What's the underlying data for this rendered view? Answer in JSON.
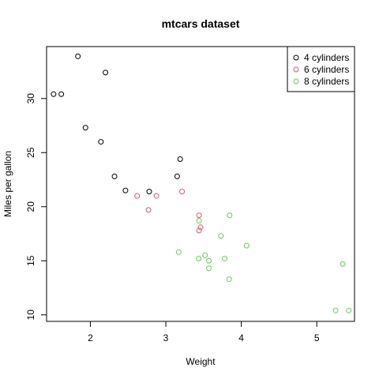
{
  "chart_data": {
    "type": "scatter",
    "title": "mtcars dataset",
    "xlabel": "Weight",
    "ylabel": "Miles per gallon",
    "xlim": [
      1.42,
      5.5
    ],
    "ylim": [
      9.4,
      34.8
    ],
    "xticks": [
      2,
      3,
      4,
      5
    ],
    "yticks": [
      10,
      15,
      20,
      25,
      30
    ],
    "grid": false,
    "legend_position": "top-right",
    "marker": "open-circle",
    "series": [
      {
        "name": "4 cylinders",
        "color": "#000000",
        "points": [
          {
            "x": 1.835,
            "y": 33.9
          },
          {
            "x": 2.2,
            "y": 32.4
          },
          {
            "x": 1.513,
            "y": 30.4
          },
          {
            "x": 1.615,
            "y": 30.4
          },
          {
            "x": 1.935,
            "y": 27.3
          },
          {
            "x": 2.14,
            "y": 26.0
          },
          {
            "x": 3.19,
            "y": 24.4
          },
          {
            "x": 3.15,
            "y": 22.8
          },
          {
            "x": 2.32,
            "y": 22.8
          },
          {
            "x": 2.465,
            "y": 21.5
          },
          {
            "x": 2.78,
            "y": 21.4
          }
        ]
      },
      {
        "name": "6 cylinders",
        "color": "#DF536B",
        "points": [
          {
            "x": 3.215,
            "y": 21.4
          },
          {
            "x": 2.62,
            "y": 21.0
          },
          {
            "x": 2.875,
            "y": 21.0
          },
          {
            "x": 2.77,
            "y": 19.7
          },
          {
            "x": 3.44,
            "y": 19.2
          },
          {
            "x": 3.46,
            "y": 18.1
          },
          {
            "x": 3.44,
            "y": 17.8
          }
        ]
      },
      {
        "name": "8 cylinders",
        "color": "#61D04F",
        "points": [
          {
            "x": 3.845,
            "y": 19.2
          },
          {
            "x": 3.44,
            "y": 18.7
          },
          {
            "x": 3.73,
            "y": 17.3
          },
          {
            "x": 4.07,
            "y": 16.4
          },
          {
            "x": 3.17,
            "y": 15.8
          },
          {
            "x": 3.52,
            "y": 15.5
          },
          {
            "x": 3.435,
            "y": 15.2
          },
          {
            "x": 3.78,
            "y": 15.2
          },
          {
            "x": 3.57,
            "y": 15.0
          },
          {
            "x": 5.345,
            "y": 14.7
          },
          {
            "x": 3.57,
            "y": 14.3
          },
          {
            "x": 3.84,
            "y": 13.3
          },
          {
            "x": 5.25,
            "y": 10.4
          },
          {
            "x": 5.424,
            "y": 10.4
          }
        ]
      }
    ]
  }
}
